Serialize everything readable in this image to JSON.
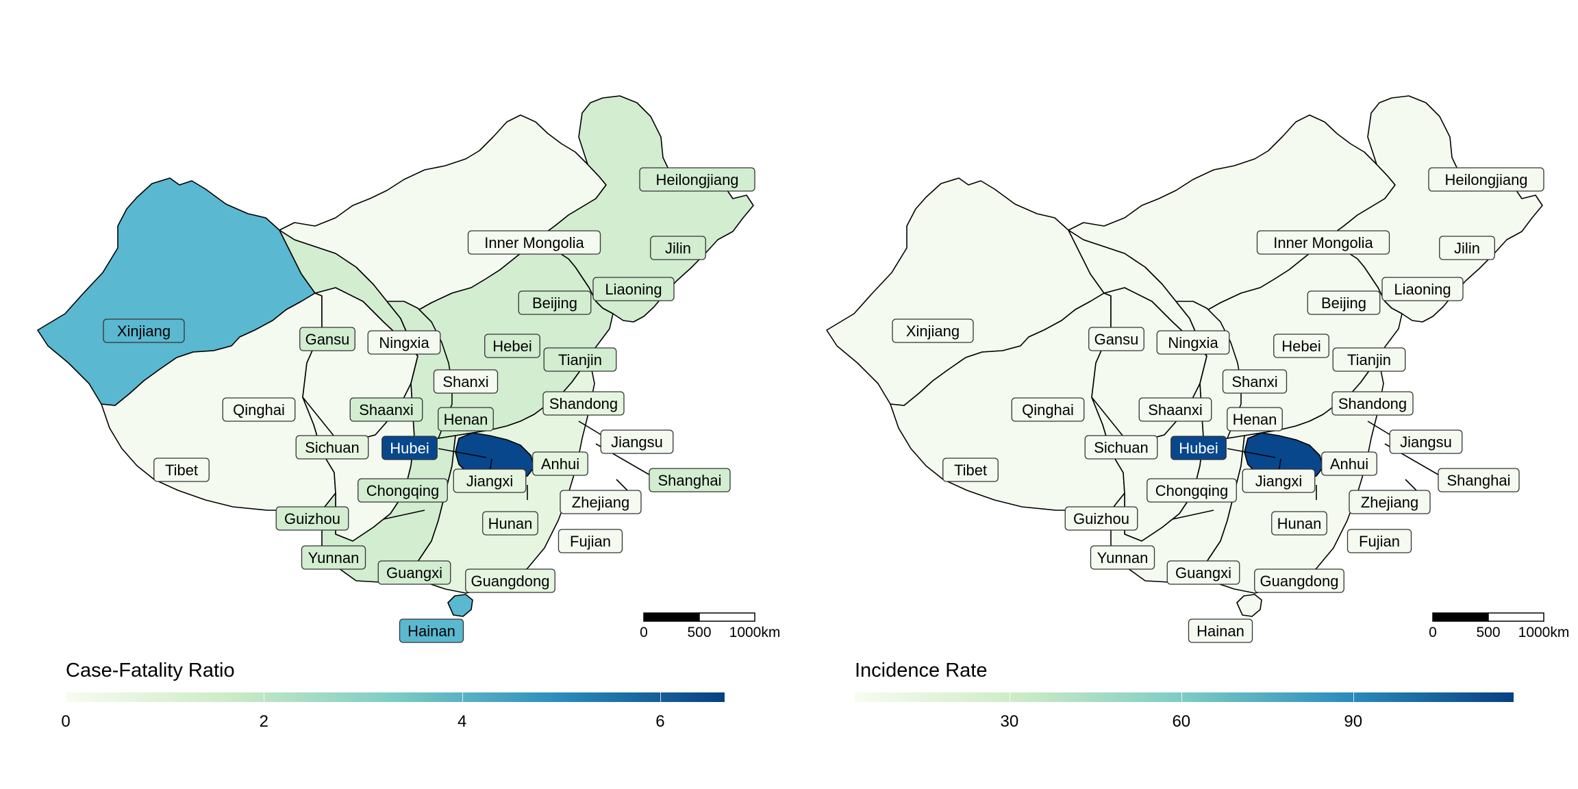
{
  "panels": [
    {
      "legend": {
        "title": "Case-Fatality Ratio",
        "domain": [
          0,
          6.65
        ],
        "ticks": [
          {
            "value": 0,
            "label": "0"
          },
          {
            "value": 2,
            "label": "2"
          },
          {
            "value": 4,
            "label": "4"
          },
          {
            "value": 6,
            "label": "6"
          }
        ]
      },
      "scale_bar": {
        "labels": [
          "0",
          "500",
          "1000km"
        ]
      },
      "label_colors": {
        "Xinjiang": "#5ab8d0",
        "Hubei": "#08478c",
        "Hainan": "#5ab8d0",
        "Heilongjiang": "#d2edd0",
        "Jilin": "#d2edd0",
        "Liaoning": "#d2edd0",
        "Beijing": "#d2edd0",
        "Hebei": "#d2edd0",
        "Gansu": "#d2edd0",
        "Shaanxi": "#d2edd0",
        "Henan": "#d2edd0",
        "Chongqing": "#d2edd0",
        "Guizhou": "#d2edd0",
        "Yunnan": "#d2edd0",
        "Guangxi": "#d2edd0",
        "Tianjin": "#d2edd0",
        "Shandong": "#e6f5e0",
        "Anhui": "#e6f5e0",
        "Sichuan": "#e6f5e0",
        "Guangdong": "#e6f5e0",
        "Hunan": "#e6f5e0",
        "Jiangxi": "#e6f5e0",
        "Zhejiang": "#f4faf0",
        "Jiangsu": "#f4faf0",
        "Shanghai": "#d2edd0",
        "Fujian": "#f4faf0",
        "Qinghai": "#f4faf0",
        "Tibet": "#f4faf0",
        "Ningxia": "#f4faf0",
        "Shanxi": "#f4faf0",
        "Inner Mongolia": "#f4faf0"
      },
      "region_colors": {
        "Xinjiang": "#5ab8d0",
        "Hubei": "#08478c",
        "Hainan": "#5ab8d0",
        "Northeast": "#d2edd0",
        "InnerMongolia": "#f4faf0",
        "Tibet": "#f4faf0",
        "Qinghai": "#f4faf0",
        "Gansu": "#d2edd0",
        "Sichuan": "#f4faf0",
        "Shaanxi": "#d2edd0",
        "North": "#d2edd0",
        "SouthWest": "#d2edd0",
        "SouthEast": "#e6f5e0"
      }
    },
    {
      "legend": {
        "title": "Incidence Rate",
        "domain": [
          3,
          118
        ],
        "ticks": [
          {
            "value": 30,
            "label": "30"
          },
          {
            "value": 60,
            "label": "60"
          },
          {
            "value": 90,
            "label": "90"
          }
        ]
      },
      "scale_bar": {
        "labels": [
          "0",
          "500",
          "1000km"
        ]
      },
      "label_colors": {
        "Hubei": "#08478c"
      },
      "region_colors": {
        "Hubei": "#08478c"
      }
    }
  ],
  "labels": [
    "Xinjiang",
    "Tibet",
    "Qinghai",
    "Gansu",
    "Ningxia",
    "Inner Mongolia",
    "Heilongjiang",
    "Jilin",
    "Liaoning",
    "Beijing",
    "Hebei",
    "Tianjin",
    "Shanxi",
    "Shaanxi",
    "Henan",
    "Shandong",
    "Jiangsu",
    "Shanghai",
    "Anhui",
    "Hubei",
    "Sichuan",
    "Chongqing",
    "Jiangxi",
    "Zhejiang",
    "Guizhou",
    "Hunan",
    "Fujian",
    "Yunnan",
    "Guangxi",
    "Guangdong",
    "Hainan"
  ],
  "colors": {
    "default_fill": "#f4faf0",
    "dark_label_text": "#ffffff",
    "ramp": [
      "#f7fcf0",
      "#ccebc5",
      "#7bccc4",
      "#2b8cbe",
      "#084081"
    ]
  }
}
